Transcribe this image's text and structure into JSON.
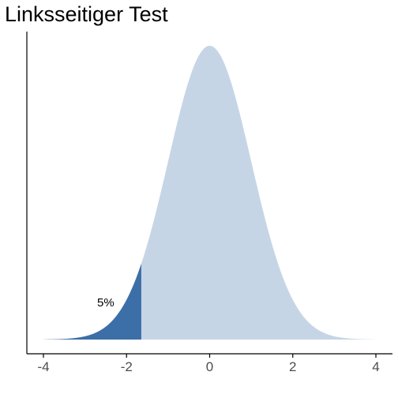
{
  "chart_data": {
    "type": "area",
    "title": "Linksseitiger Test",
    "xlabel": "",
    "ylabel": "",
    "distribution": "standard normal density",
    "xlim": [
      -4,
      4
    ],
    "ylim": [
      0,
      0.3989
    ],
    "xticks": [
      -4,
      -2,
      0,
      2,
      4
    ],
    "xtick_labels": [
      "-4",
      "-2",
      "0",
      "2",
      "4"
    ],
    "y_axis_ticks": false,
    "grid": false,
    "critical_value": -1.645,
    "shaded_region": {
      "from": -4,
      "to": -1.645,
      "share": 0.05
    },
    "annotation": {
      "text": "5%",
      "x": -2.5,
      "y": 0.045
    },
    "colors": {
      "body": "#c6d5e6",
      "tail": "#3c6fa8",
      "axis": "#000000",
      "tick_text": "#4d4d4d"
    }
  }
}
